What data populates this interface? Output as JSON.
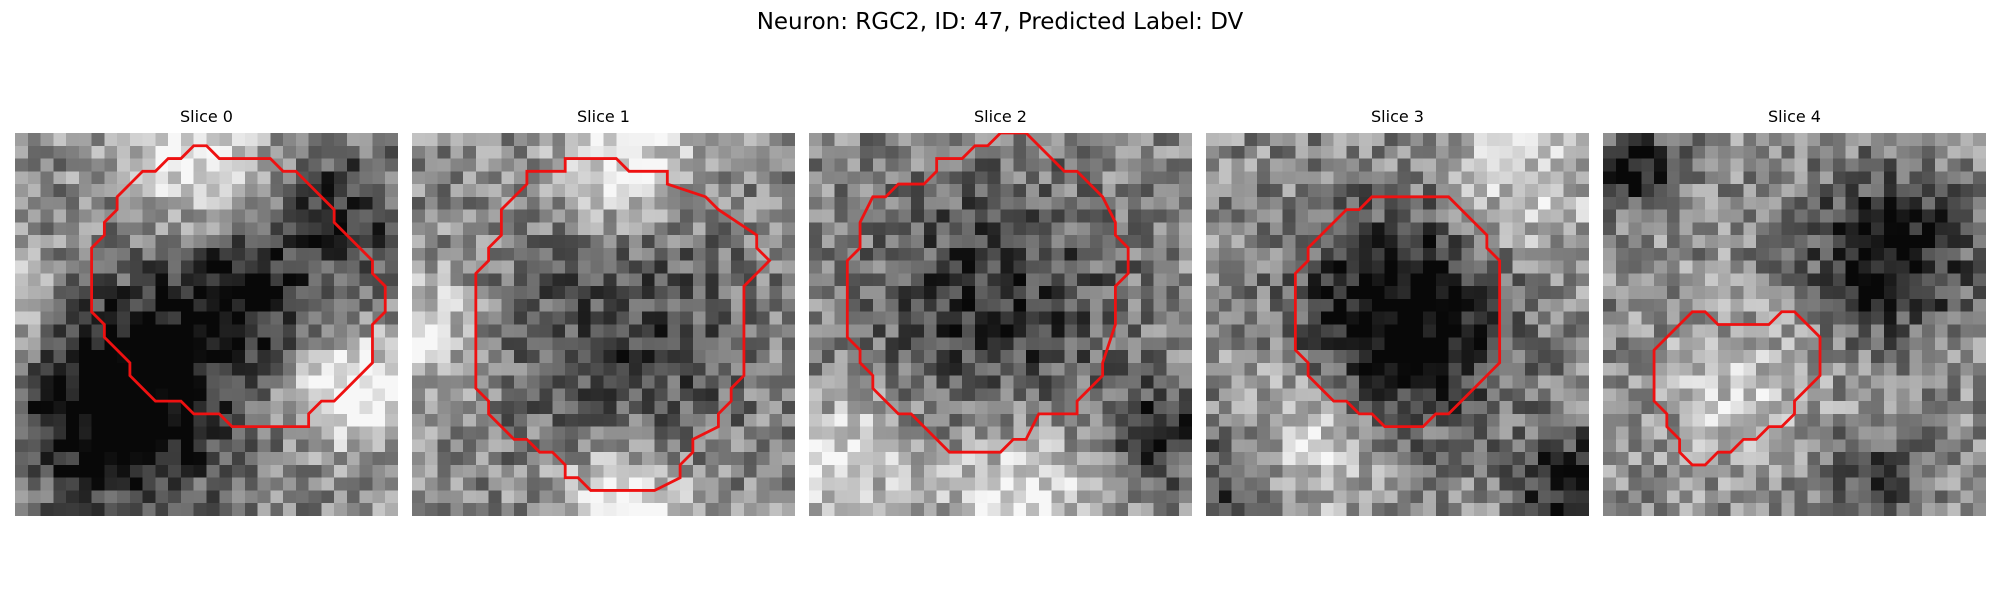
{
  "figure": {
    "title": "Neuron: RGC2, ID: 47, Predicted Label: DV",
    "contour_color": "#ee1111"
  },
  "slices": [
    {
      "label": "Slice 0"
    },
    {
      "label": "Slice 1"
    },
    {
      "label": "Slice 2"
    },
    {
      "label": "Slice 3"
    },
    {
      "label": "Slice 4"
    }
  ]
}
